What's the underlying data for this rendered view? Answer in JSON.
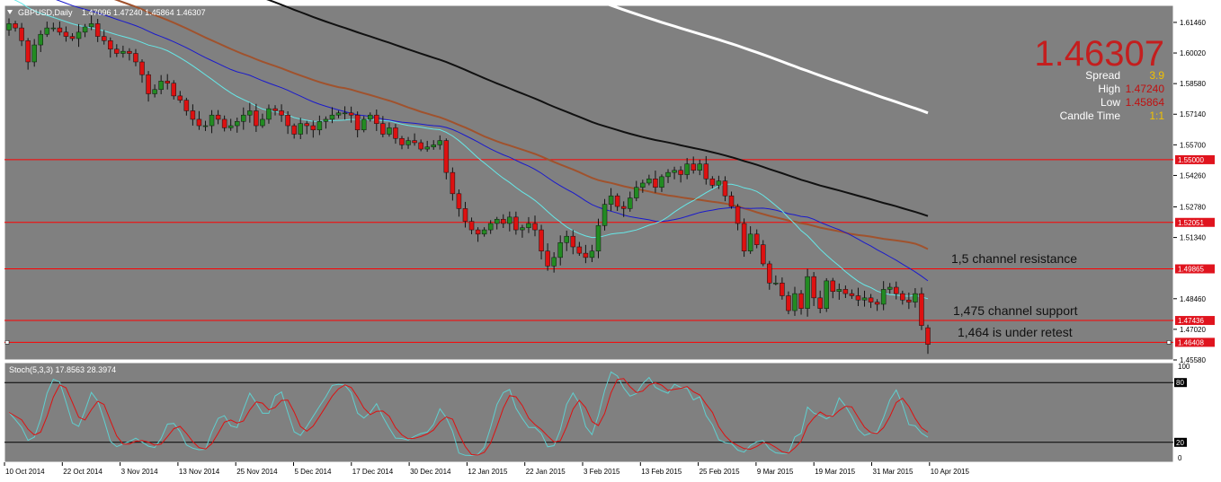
{
  "header": {
    "symbol_label": "GBPUSD,Daily",
    "ohlc_label": "1.47096 1.47240 1.45864 1.46307"
  },
  "price_panel": {
    "bid_big": "1.46307",
    "info_rows": [
      {
        "label": "Spread",
        "value": "3.9",
        "value_color": "#f0c000"
      },
      {
        "label": "High",
        "value": "1.47240",
        "value_color": "#c01010"
      },
      {
        "label": "Low",
        "value": "1.45864",
        "value_color": "#c01010"
      },
      {
        "label": "Candle Time",
        "value": "1:1",
        "value_color": "#f0c000"
      }
    ]
  },
  "price_axis": {
    "ticks": [
      "1.61460",
      "1.60020",
      "1.58580",
      "1.57140",
      "1.55700",
      "1.54260",
      "1.52780",
      "1.51340",
      "1.48460",
      "1.47020",
      "1.45580"
    ],
    "line_labels": [
      "1.55000",
      "1.52051",
      "1.49865",
      "1.47436",
      "1.46408"
    ]
  },
  "annotations": [
    {
      "text": "1,5 channel resistance"
    },
    {
      "text": "1,475 channel support"
    },
    {
      "text": "1,464 is under retest"
    }
  ],
  "stoch": {
    "label": "Stoch(5,3,3) 17.8563 28.3974",
    "ticks": [
      "100",
      "80",
      "20",
      "0"
    ]
  },
  "time_axis": {
    "labels": [
      "10 Oct 2014",
      "22 Oct 2014",
      "3 Nov 2014",
      "13 Nov 2014",
      "25 Nov 2014",
      "5 Dec 2014",
      "17 Dec 2014",
      "30 Dec 2014",
      "12 Jan 2015",
      "22 Jan 2015",
      "3 Feb 2015",
      "13 Feb 2015",
      "25 Feb 2015",
      "9 Mar 2015",
      "19 Mar 2015",
      "31 Mar 2015",
      "10 Apr 2015"
    ]
  },
  "colors": {
    "chart_bg": "#808080",
    "bull_candle": "#228b22",
    "bear_candle": "#dd1111",
    "level_line": "#ff0000",
    "ma_white": "#ffffff",
    "ma_black": "#111111",
    "ma_brown": "#a0522d",
    "ma_blue": "#1a1acc",
    "ma_cyan": "#66e8e8",
    "stoch_main": "#5fcfcf",
    "stoch_signal": "#dd1111"
  },
  "chart_data": {
    "type": "candlestick",
    "symbol": "GBPUSD",
    "timeframe": "Daily",
    "last": {
      "open": 1.47096,
      "high": 1.4724,
      "low": 1.45864,
      "close": 1.46307
    },
    "ylim": [
      1.4558,
      1.6226
    ],
    "horizontal_levels": [
      1.55,
      1.52051,
      1.49865,
      1.47436,
      1.46408
    ],
    "closes": [
      1.614,
      1.612,
      1.606,
      1.596,
      1.604,
      1.609,
      1.612,
      1.612,
      1.61,
      1.608,
      1.607,
      1.61,
      1.6125,
      1.614,
      1.608,
      1.606,
      1.602,
      1.6,
      1.601,
      1.6,
      1.596,
      1.59,
      1.581,
      1.583,
      1.587,
      1.586,
      1.58,
      1.578,
      1.573,
      1.569,
      1.566,
      1.566,
      1.571,
      1.569,
      1.565,
      1.566,
      1.568,
      1.571,
      1.573,
      1.566,
      1.569,
      1.574,
      1.573,
      1.571,
      1.566,
      1.562,
      1.567,
      1.566,
      1.564,
      1.568,
      1.569,
      1.571,
      1.572,
      1.572,
      1.571,
      1.564,
      1.569,
      1.571,
      1.567,
      1.562,
      1.565,
      1.56,
      1.557,
      1.559,
      1.558,
      1.555,
      1.556,
      1.557,
      1.559,
      1.544,
      1.534,
      1.527,
      1.521,
      1.517,
      1.515,
      1.517,
      1.52,
      1.522,
      1.52,
      1.523,
      1.517,
      1.518,
      1.52,
      1.517,
      1.507,
      1.5,
      1.504,
      1.511,
      1.514,
      1.509,
      1.506,
      1.504,
      1.507,
      1.519,
      1.529,
      1.533,
      1.528,
      1.527,
      1.532,
      1.537,
      1.539,
      1.541,
      1.537,
      1.542,
      1.544,
      1.545,
      1.543,
      1.548,
      1.545,
      1.548,
      1.541,
      1.538,
      1.54,
      1.533,
      1.528,
      1.52,
      1.507,
      1.515,
      1.51,
      1.501,
      1.492,
      1.492,
      1.486,
      1.479,
      1.487,
      1.48,
      1.495,
      1.485,
      1.48,
      1.493,
      1.488,
      1.489,
      1.487,
      1.486,
      1.484,
      1.485,
      1.483,
      1.482,
      1.489,
      1.49,
      1.487,
      1.484,
      1.483,
      1.487,
      1.472,
      1.4631
    ]
  }
}
